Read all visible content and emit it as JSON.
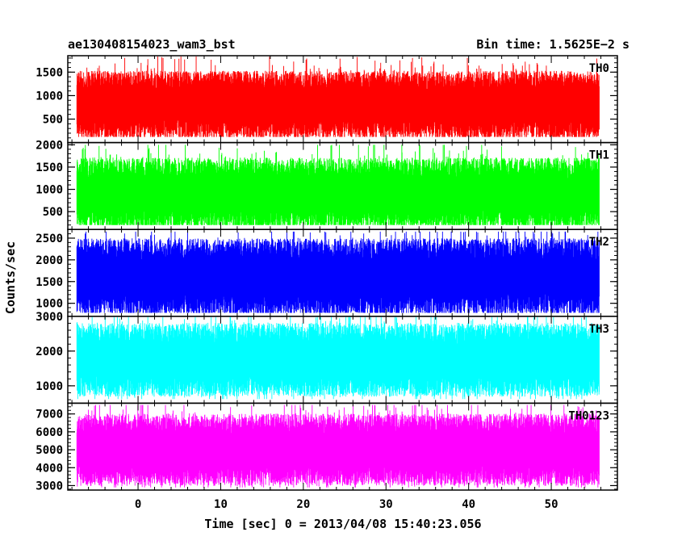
{
  "chart_data": {
    "type": "line",
    "title": "ae130408154023_wam3_bst",
    "bin_time": "Bin time: 1.5625E−2 s",
    "xlabel": "Time [sec] 0 = 2013/04/08 15:40:23.056",
    "ylabel": "Counts/sec",
    "xlim": [
      -8.5,
      58
    ],
    "data_x_range": [
      -7.4,
      55.8
    ],
    "x_ticks": [
      0,
      10,
      20,
      30,
      40,
      50
    ],
    "x_tick_labels": [
      "0",
      "10",
      "20",
      "30",
      "40",
      "50"
    ],
    "panels": [
      {
        "name": "TH0",
        "color": "#ff0000",
        "ylim": [
          0,
          1850
        ],
        "y_ticks": [
          500,
          1000,
          1500
        ],
        "y_tick_labels": [
          "500",
          "1000",
          "1500"
        ],
        "mean": 800,
        "spread": 260,
        "min_floor": 120,
        "max_cap": 1850,
        "seed": 11
      },
      {
        "name": "TH1",
        "color": "#00ff00",
        "ylim": [
          100,
          2050
        ],
        "y_ticks": [
          500,
          1000,
          1500,
          2000
        ],
        "y_tick_labels": [
          "500",
          "1000",
          "1500",
          "2000"
        ],
        "mean": 900,
        "spread": 290,
        "min_floor": 200,
        "max_cap": 2000,
        "seed": 23
      },
      {
        "name": "TH2",
        "color": "#0000ff",
        "ylim": [
          700,
          2700
        ],
        "y_ticks": [
          1000,
          1500,
          2000,
          2500
        ],
        "y_tick_labels": [
          "1000",
          "1500",
          "2000",
          "2500"
        ],
        "mean": 1600,
        "spread": 320,
        "min_floor": 780,
        "max_cap": 2650,
        "seed": 37
      },
      {
        "name": "TH3",
        "color": "#00ffff",
        "ylim": [
          500,
          3000
        ],
        "y_ticks": [
          1000,
          2000,
          3000
        ],
        "y_tick_labels": [
          "1000",
          "2000",
          "3000"
        ],
        "mean": 1750,
        "spread": 380,
        "min_floor": 620,
        "max_cap": 3000,
        "seed": 41
      },
      {
        "name": "TH0123",
        "color": "#ff00ff",
        "ylim": [
          2750,
          7600
        ],
        "y_ticks": [
          3000,
          4000,
          5000,
          6000,
          7000
        ],
        "y_tick_labels": [
          "3000",
          "4000",
          "5000",
          "6000",
          "7000"
        ],
        "mean": 5000,
        "spread": 720,
        "min_floor": 2900,
        "max_cap": 7500,
        "seed": 53
      }
    ]
  }
}
